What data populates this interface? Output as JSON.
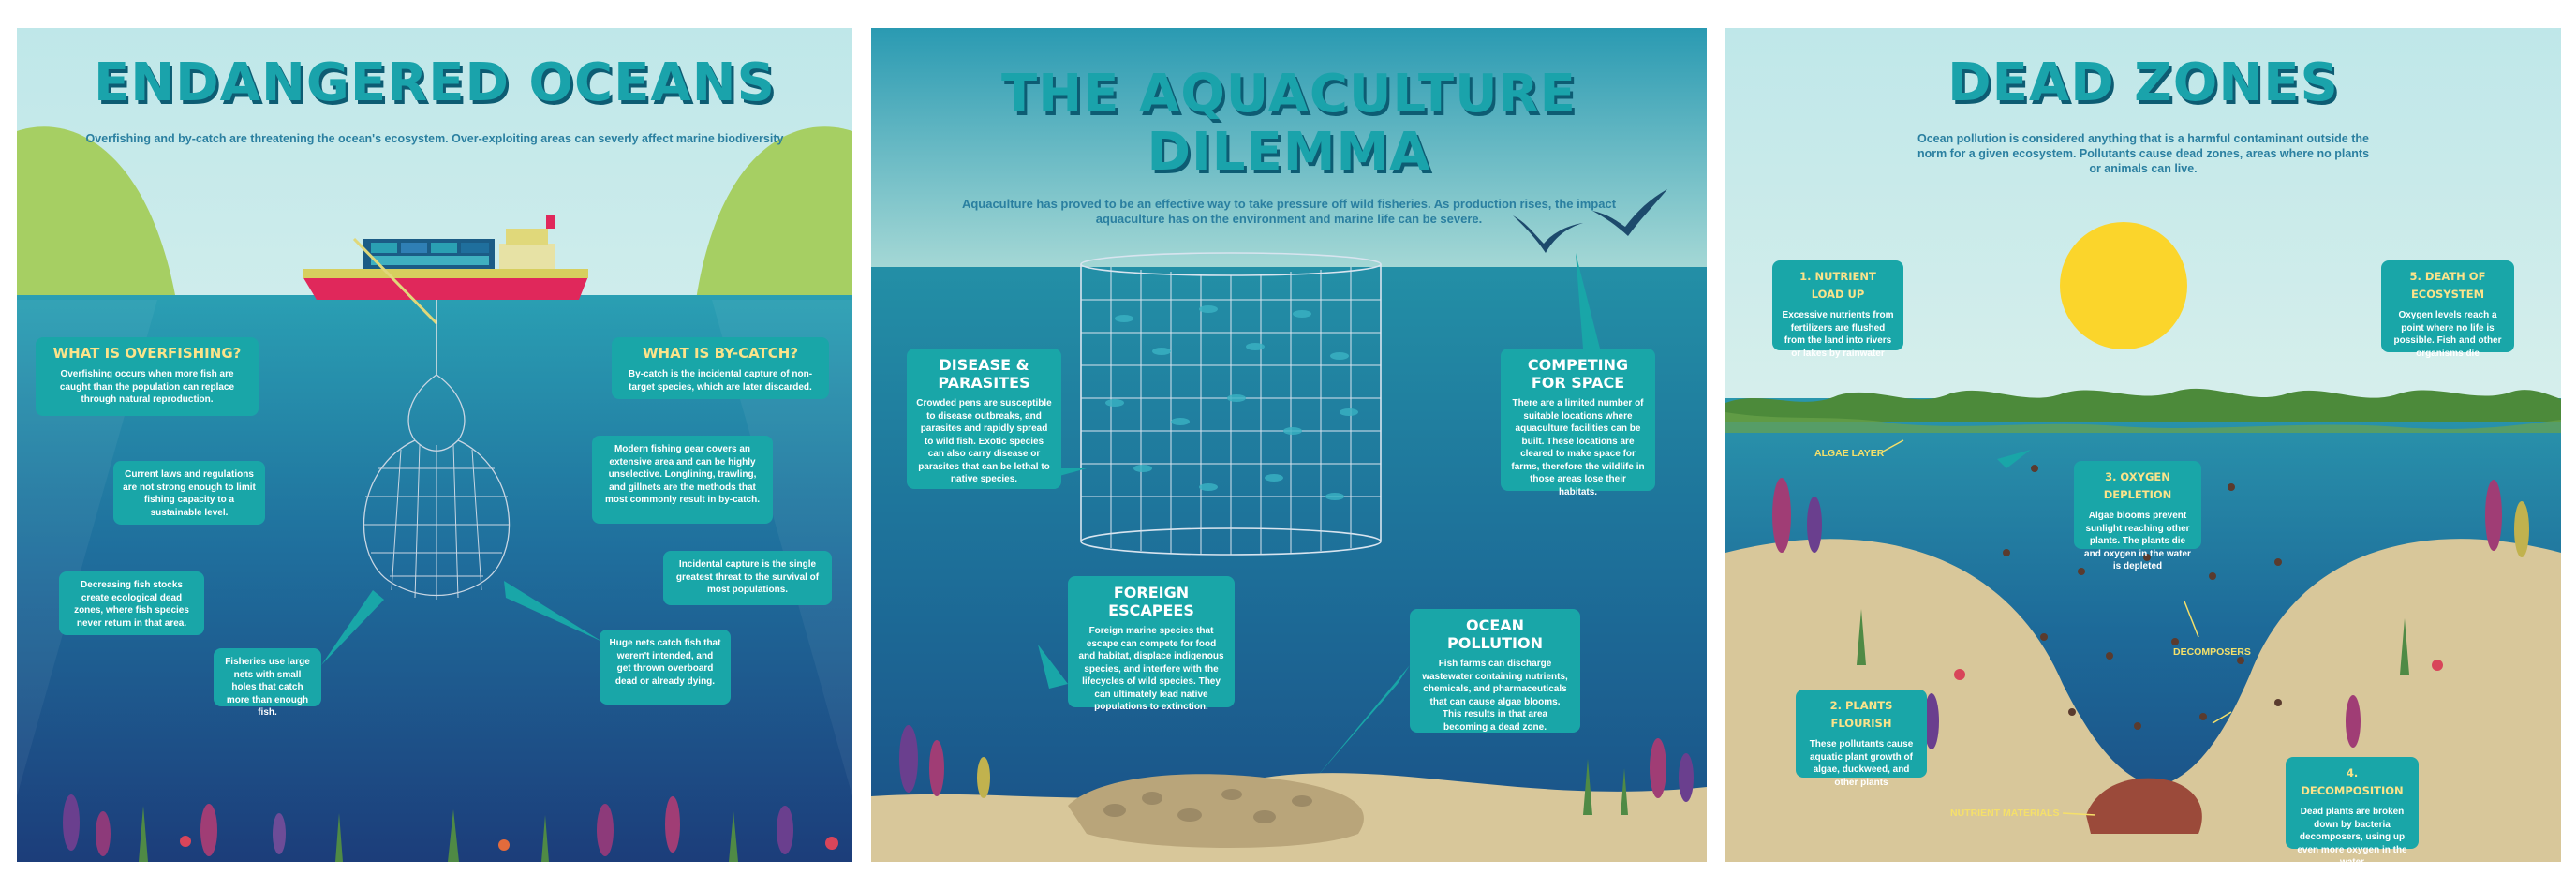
{
  "overfishing": {
    "title": "ENDANGERED OCEANS",
    "subtitle": "Overfishing and by-catch are threatening the ocean's ecosystem. Over-exploiting areas can severly affect marine biodiversity",
    "callouts": [
      {
        "heading": "WHAT IS OVERFISHING?",
        "text": "Overfishing occurs when more fish are caught than the population can replace through natural reproduction."
      },
      {
        "heading": "",
        "text": "Current laws and regulations are not strong enough to limit fishing capacity to a sustainable level."
      },
      {
        "heading": "",
        "text": "Decreasing fish stocks create ecological dead zones, where fish species never return in that area."
      },
      {
        "heading": "",
        "text": "Fisheries use large nets with small holes that catch more than enough fish."
      },
      {
        "heading": "WHAT IS BY-CATCH?",
        "text": "By-catch is the incidental capture of non-target species, which are later discarded."
      },
      {
        "heading": "",
        "text": "Modern fishing gear covers an extensive area and can be highly unselective. Longlining, trawling, and gillnets are the methods that most commonly result in by-catch."
      },
      {
        "heading": "",
        "text": "Incidental capture is the single greatest threat to the survival of most populations."
      },
      {
        "heading": "",
        "text": "Huge nets catch fish that weren't intended, and get thrown overboard dead or already dying."
      }
    ]
  },
  "aquaculture": {
    "title_line1": "THE AQUACULTURE",
    "title_line2": "DILEMMA",
    "subtitle": "Aquaculture has proved to be an effective way to take pressure off wild fisheries. As production rises, the impact aquaculture has on the environment and marine life can be severe.",
    "callouts": [
      {
        "heading": "DISEASE & PARASITES",
        "text": "Crowded pens are susceptible to disease outbreaks, and parasites and rapidly spread to wild fish. Exotic species can also carry disease or parasites that can be lethal to native species."
      },
      {
        "heading": "COMPETING FOR SPACE",
        "text": "There are a limited number of suitable locations where aquaculture facilities can be built. These locations are cleared to make space for farms, therefore the wildlife in those areas lose their habitats."
      },
      {
        "heading": "FOREIGN ESCAPEES",
        "text": "Foreign marine species that escape can compete for food and habitat, displace indigenous species, and interfere with the lifecycles of wild species. They can ultimately lead native populations to extinction."
      },
      {
        "heading": "OCEAN POLLUTION",
        "text": "Fish farms can discharge wastewater containing nutrients, chemicals, and pharmaceuticals that can cause algae blooms. This results in that area becoming a dead zone."
      }
    ]
  },
  "dead_zones": {
    "title": "DEAD ZONES",
    "subtitle": "Ocean pollution is considered anything that is a harmful contaminant outside the norm for a given ecosystem. Pollutants cause dead zones, areas where no plants or animals can live.",
    "callouts": [
      {
        "heading": "1. NUTRIENT LOAD UP",
        "text": "Excessive nutrients from fertilizers are flushed from the land into rivers or lakes by rainwater"
      },
      {
        "heading": "2. PLANTS FLOURISH",
        "text": "These pollutants cause aquatic plant growth of algae, duckweed, and other plants"
      },
      {
        "heading": "3. OXYGEN DEPLETION",
        "text": "Algae blooms prevent sunlight reaching other plants. The plants die and oxygen in the water is depleted"
      },
      {
        "heading": "4. DECOMPOSITION",
        "text": "Dead plants are broken down by bacteria decomposers, using up even more oxygen in the water"
      },
      {
        "heading": "5. DEATH OF ECOSYSTEM",
        "text": "Oxygen levels reach a point where no life is possible. Fish and other organisms die"
      }
    ],
    "labels": {
      "algae": "ALGAE LAYER",
      "decomposers": "DECOMPOSERS",
      "nutrients": "NUTRIENT MATERIALS"
    }
  },
  "colors": {
    "teal": "#19a6a8",
    "title": "#1aa3ab",
    "deep": "#1c4f86",
    "sun": "#fbd52b",
    "sand": "#d8c79a"
  }
}
